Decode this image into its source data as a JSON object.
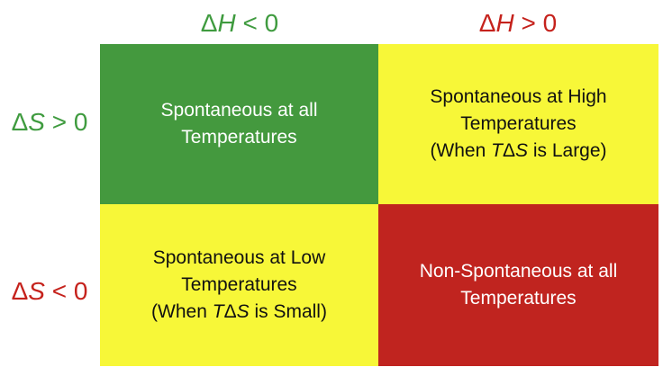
{
  "columns": {
    "left": {
      "delta": "Δ",
      "var": "H",
      "rel": " < 0"
    },
    "right": {
      "delta": "Δ",
      "var": "H",
      "rel": " > 0"
    }
  },
  "rows": {
    "top": {
      "delta": "Δ",
      "var": "S",
      "rel": " > 0"
    },
    "bottom": {
      "delta": "Δ",
      "var": "S",
      "rel": " < 0"
    }
  },
  "cells": {
    "top_left": {
      "line1": "Spontaneous at all",
      "line2": "Temperatures"
    },
    "top_right": {
      "line1": "Spontaneous at High",
      "line2": "Temperatures",
      "line3_pre": "(When ",
      "line3_T": "T",
      "line3_delta": "Δ",
      "line3_S": "S",
      "line3_post": " is Large)"
    },
    "bottom_left": {
      "line1": "Spontaneous at Low",
      "line2": "Temperatures",
      "line3_pre": "(When ",
      "line3_T": "T",
      "line3_delta": "Δ",
      "line3_S": "S",
      "line3_post": " is Small)"
    },
    "bottom_right": {
      "line1": "Non-Spontaneous at all",
      "line2": "Temperatures"
    }
  },
  "colors": {
    "green": "#44993e",
    "yellow": "#f7f738",
    "red": "#c0241f",
    "label_green": "#3f9b3f",
    "label_red": "#c5221c"
  }
}
